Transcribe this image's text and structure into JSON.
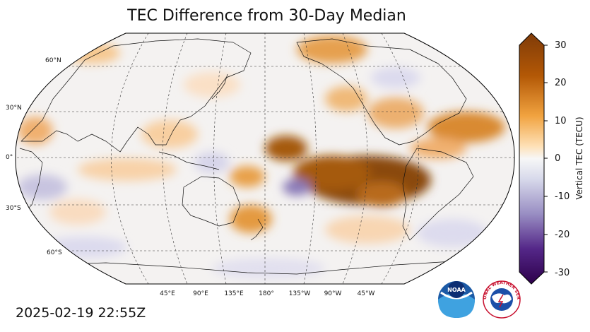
{
  "title": "TEC Difference from 30-Day Median",
  "timestamp": "2025-02-19 22:55Z",
  "colorbar": {
    "label": "Vertical TEC (TECU)",
    "min": -30,
    "max": 30,
    "ticks": [
      "30",
      "20",
      "10",
      "0",
      "-10",
      "-20",
      "-30"
    ],
    "colors": {
      "max": "#7f3b08",
      "high": "#e08214",
      "mid_high": "#fdb863",
      "neutral": "#f7f7f7",
      "mid_low": "#b2abd2",
      "low": "#5e3c99",
      "min": "#2d004b"
    }
  },
  "map": {
    "projection": "robinson",
    "central_longitude": 180,
    "lat_labels": [
      "60°N",
      "30°N",
      "0°",
      "30°S",
      "60°S"
    ],
    "lon_labels": [
      "45°E",
      "90°E",
      "135°E",
      "180°",
      "135°W",
      "90°W",
      "45°W"
    ]
  },
  "logos": {
    "noaa_text": "NOAA",
    "nws_text": "NATIONAL WEATHER SERVICE"
  }
}
